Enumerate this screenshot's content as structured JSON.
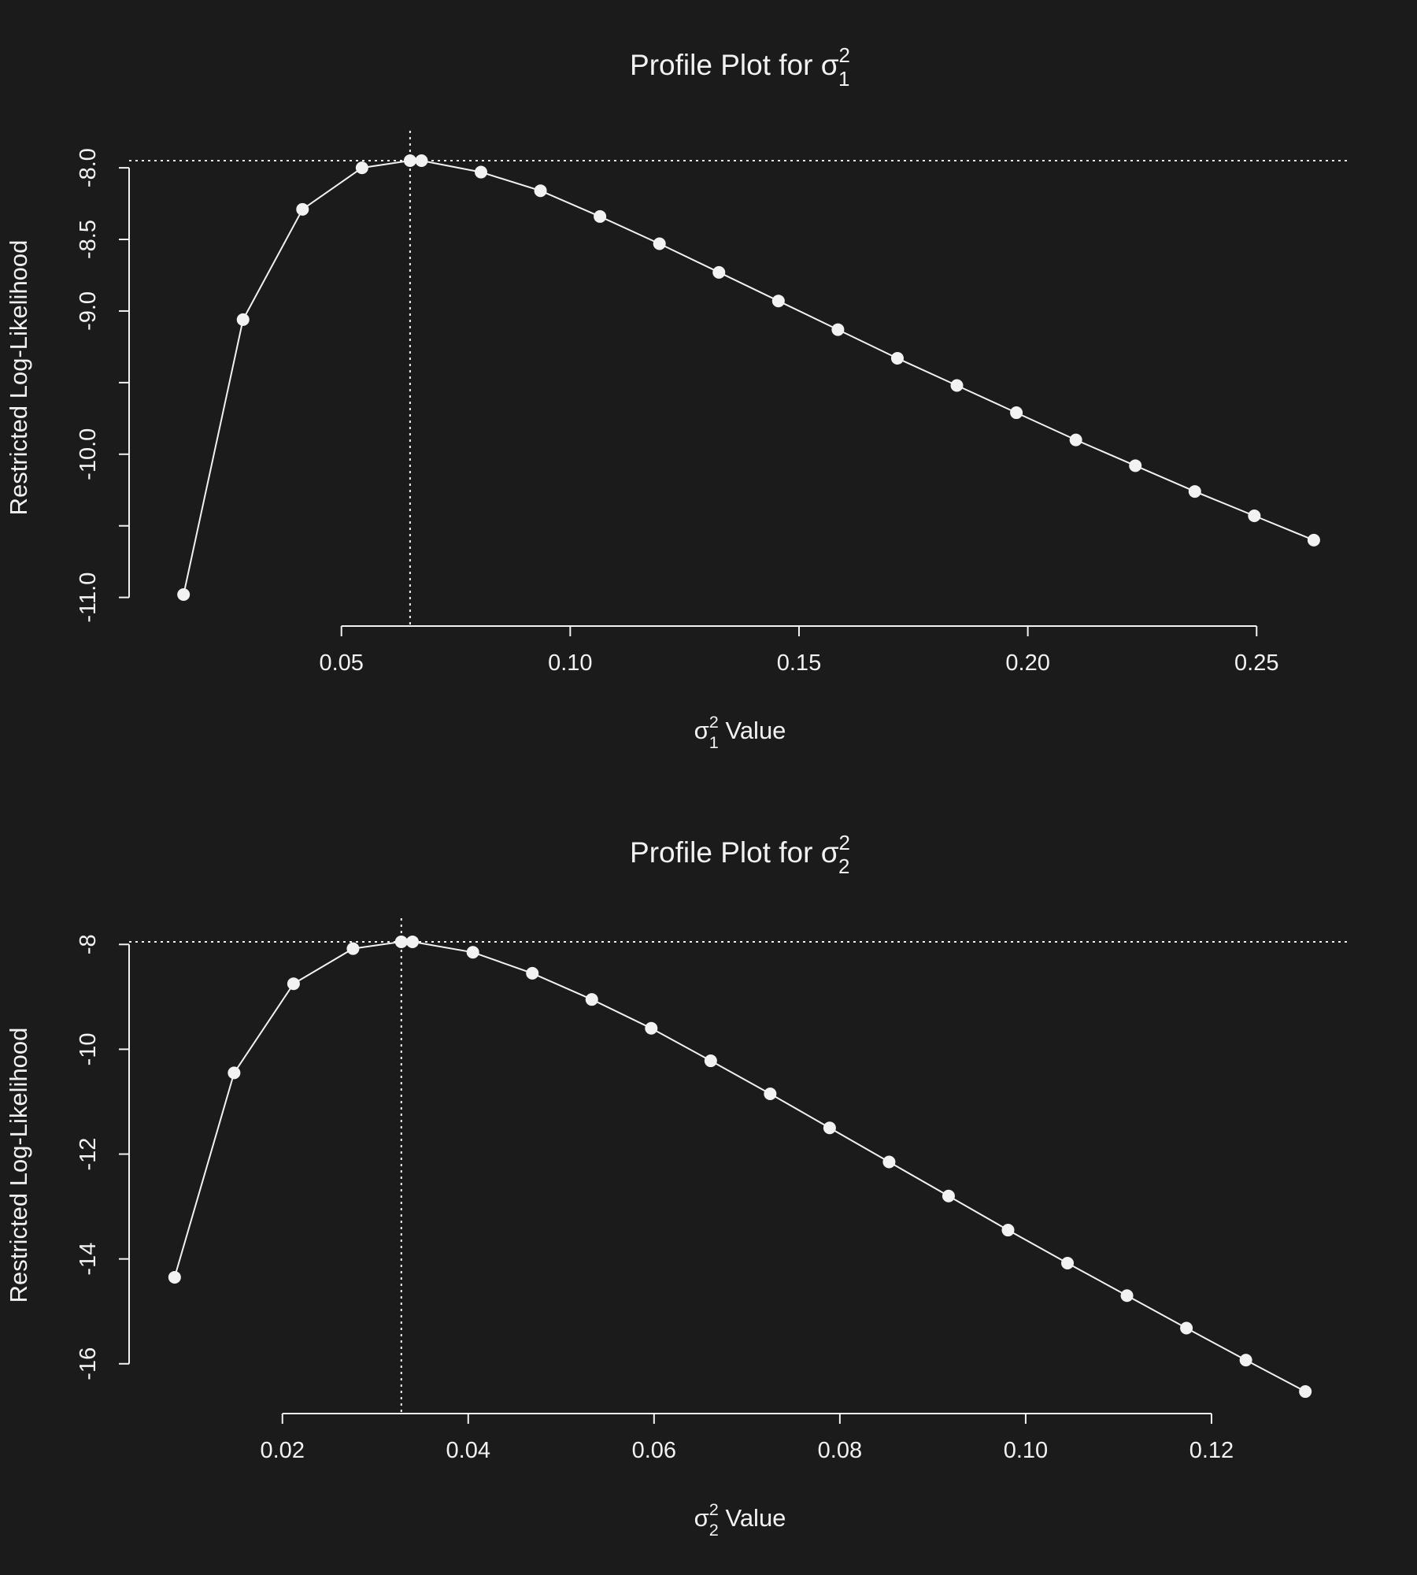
{
  "chart_data": [
    {
      "type": "line",
      "title": "Profile Plot for σ",
      "title_sup": "2",
      "title_sub": "1",
      "xlabel": "σ",
      "xlabel_sup": "2",
      "xlabel_sub": "1",
      "xlabel_suffix": " Value",
      "ylabel": "Restricted Log-Likelihood",
      "xlim": [
        0.0036,
        0.2706
      ],
      "ylim": [
        -11.2,
        -7.73
      ],
      "xticks": [
        0.05,
        0.1,
        0.15,
        0.2,
        0.25
      ],
      "xtick_labels": [
        "0.05",
        "0.10",
        "0.15",
        "0.20",
        "0.25"
      ],
      "yticks": [
        -11.0,
        -10.5,
        -10.0,
        -9.5,
        -9.0,
        -8.5,
        -8.0
      ],
      "ytick_labels": [
        "-11.0",
        "",
        "-10.0",
        "",
        "-9.0",
        "-8.5",
        "-8.0"
      ],
      "grid": false,
      "reference_lines": {
        "x": 0.065,
        "y": -7.95
      },
      "x": [
        0.0155,
        0.0285,
        0.0415,
        0.0545,
        0.065,
        0.0675,
        0.0805,
        0.0935,
        0.1065,
        0.1195,
        0.1325,
        0.1455,
        0.1585,
        0.1715,
        0.1845,
        0.1975,
        0.2105,
        0.2235,
        0.2365,
        0.2495,
        0.2625
      ],
      "y": [
        -10.98,
        -9.06,
        -8.29,
        -8.0,
        -7.95,
        -7.95,
        -8.03,
        -8.16,
        -8.34,
        -8.53,
        -8.73,
        -8.93,
        -9.13,
        -9.33,
        -9.52,
        -9.71,
        -9.9,
        -10.08,
        -10.26,
        -10.43,
        -10.6
      ]
    },
    {
      "type": "line",
      "title": "Profile Plot for σ",
      "title_sup": "2",
      "title_sub": "2",
      "xlabel": "σ",
      "xlabel_sup": "2",
      "xlabel_sub": "2",
      "xlabel_suffix": " Value",
      "ylabel": "Restricted Log-Likelihood",
      "xlim": [
        0.0035,
        0.135
      ],
      "ylim": [
        -16.95,
        -7.47
      ],
      "xticks": [
        0.02,
        0.04,
        0.06,
        0.08,
        0.1,
        0.12
      ],
      "xtick_labels": [
        "0.02",
        "0.04",
        "0.06",
        "0.08",
        "0.10",
        "0.12"
      ],
      "yticks": [
        -16,
        -14,
        -12,
        -10,
        -8
      ],
      "ytick_labels": [
        "-16",
        "-14",
        "-12",
        "-10",
        "-8"
      ],
      "grid": false,
      "reference_lines": {
        "x": 0.0328,
        "y": -7.95
      },
      "x": [
        0.0084,
        0.0148,
        0.0212,
        0.0276,
        0.0328,
        0.034,
        0.0405,
        0.0469,
        0.0533,
        0.0597,
        0.0661,
        0.0725,
        0.0789,
        0.0853,
        0.0917,
        0.0981,
        0.1045,
        0.1109,
        0.1173,
        0.1237,
        0.1301
      ],
      "y": [
        -14.35,
        -10.45,
        -8.75,
        -8.08,
        -7.95,
        -7.95,
        -8.15,
        -8.55,
        -9.05,
        -9.6,
        -10.22,
        -10.85,
        -11.5,
        -12.15,
        -12.8,
        -13.45,
        -14.08,
        -14.7,
        -15.32,
        -15.93,
        -16.53
      ]
    }
  ]
}
